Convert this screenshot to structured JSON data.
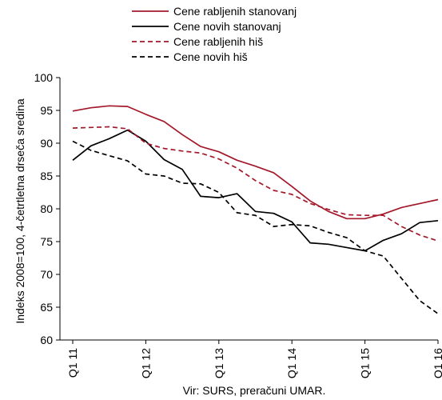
{
  "chart_data": {
    "type": "line",
    "ylabel": "Indeks 2008=100, 4-četrtletna drseča sredina",
    "source": "Vir: SURS, preračuni UMAR.",
    "ylim": [
      60,
      100
    ],
    "yticks": [
      60,
      65,
      70,
      75,
      80,
      85,
      90,
      95,
      100
    ],
    "grid": false,
    "legend_position": "top-center",
    "x_tick_labels": [
      "Q1 11",
      "Q1 12",
      "Q1 13",
      "Q1 14",
      "Q1 15",
      "Q1 16"
    ],
    "x_tick_indices": [
      0,
      4,
      8,
      12,
      16,
      20
    ],
    "x": [
      "Q1 11",
      "Q2 11",
      "Q3 11",
      "Q4 11",
      "Q1 12",
      "Q2 12",
      "Q3 12",
      "Q4 12",
      "Q1 13",
      "Q2 13",
      "Q3 13",
      "Q4 13",
      "Q1 14",
      "Q2 14",
      "Q3 14",
      "Q4 14",
      "Q1 15",
      "Q2 15",
      "Q3 15",
      "Q4 15",
      "Q1 16"
    ],
    "series": [
      {
        "name": "Cene rabljenih stanovanj",
        "color": "#a3192b",
        "dash": "solid",
        "values": [
          94.9,
          95.4,
          95.7,
          95.6,
          94.4,
          93.3,
          91.3,
          89.5,
          88.7,
          87.4,
          86.5,
          85.5,
          83.4,
          81.2,
          79.6,
          78.5,
          78.5,
          79.2,
          80.2,
          80.8,
          81.4
        ]
      },
      {
        "name": "Cene novih stanovanj",
        "color": "#000000",
        "dash": "solid",
        "values": [
          87.4,
          89.6,
          90.7,
          92.0,
          90.3,
          87.5,
          86.0,
          81.9,
          81.7,
          82.3,
          79.6,
          79.3,
          78.0,
          74.8,
          74.6,
          74.1,
          73.6,
          75.2,
          76.2,
          77.9,
          78.2
        ]
      },
      {
        "name": "Cene rabljenih hiš",
        "color": "#a3192b",
        "dash": "dashed",
        "values": [
          92.3,
          92.4,
          92.5,
          92.2,
          90.0,
          89.2,
          88.8,
          88.5,
          87.6,
          86.2,
          84.3,
          82.8,
          82.2,
          80.8,
          79.9,
          79.1,
          79.0,
          79.0,
          77.3,
          76.0,
          75.1
        ]
      },
      {
        "name": "Cene novih hiš",
        "color": "#000000",
        "dash": "dashed",
        "values": [
          90.3,
          88.9,
          88.1,
          87.3,
          85.3,
          85.0,
          83.9,
          83.8,
          82.5,
          79.4,
          79.0,
          77.3,
          77.6,
          77.4,
          76.4,
          75.6,
          73.6,
          72.8,
          69.4,
          66.0,
          64.0
        ]
      }
    ]
  }
}
